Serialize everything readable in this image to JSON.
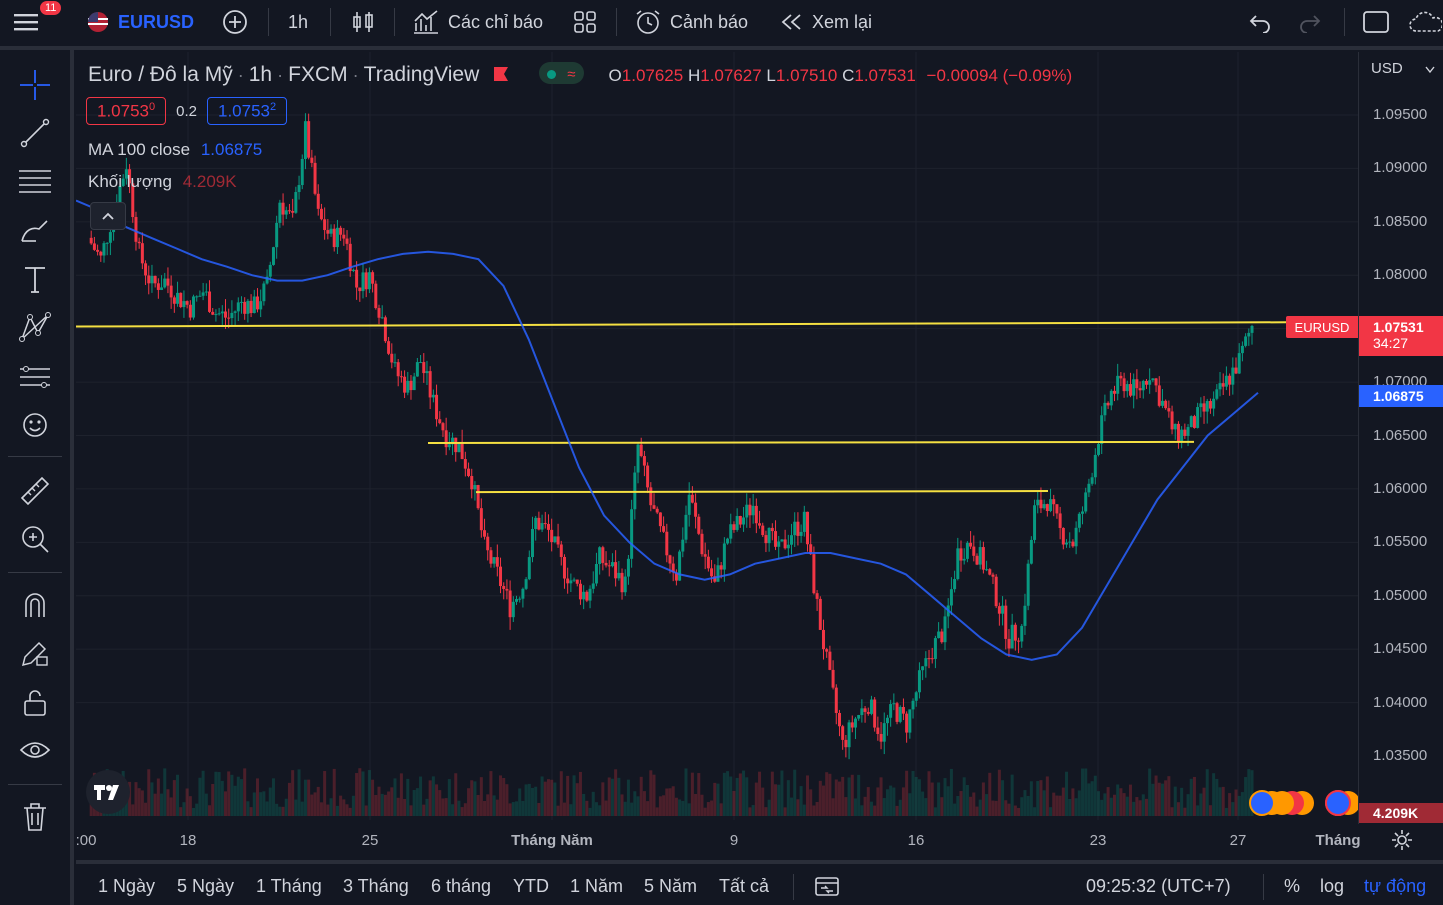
{
  "topbar": {
    "menu_badge": "11",
    "symbol": "EURUSD",
    "interval": "1h",
    "indicators_label": "Các chỉ báo",
    "alert_label": "Cảnh báo",
    "replay_label": "Xem lại"
  },
  "legend": {
    "title": "Euro / Đô la Mỹ",
    "interval": "1h",
    "exchange": "FXCM",
    "source": "TradingView",
    "open_key": "O",
    "open": "1.07625",
    "high_key": "H",
    "high": "1.07627",
    "low_key": "L",
    "low": "1.07510",
    "close_key": "C",
    "close": "1.07531",
    "change": "−0.00094 (−0.09%)",
    "bid": "1.0753",
    "bid_sup": "0",
    "spread": "0.2",
    "ask": "1.0753",
    "ask_sup": "2",
    "ma_label": "MA",
    "ma_params": "100 close",
    "ma_value": "1.06875",
    "volume_label": "Khối lượng",
    "volume_value": "4.209K"
  },
  "price_axis": {
    "currency": "USD",
    "ticks": [
      "1.09500",
      "1.09000",
      "1.08500",
      "1.08000",
      "1.07000",
      "1.06500",
      "1.06000",
      "1.05500",
      "1.05000",
      "1.04500",
      "1.04000",
      "1.03500"
    ],
    "symbol_tag": "EURUSD",
    "last_price": "1.07531",
    "countdown": "34:27",
    "ma_tag": "1.06875",
    "volume_tag": "4.209K"
  },
  "time_axis": {
    "ticks": [
      ":00",
      "18",
      "25",
      "Tháng Năm",
      "9",
      "16",
      "23",
      "27",
      "Tháng"
    ]
  },
  "bottom": {
    "ranges": [
      "1 Ngày",
      "5 Ngày",
      "1 Tháng",
      "3 Tháng",
      "6 tháng",
      "YTD",
      "1 Năm",
      "5 Năm",
      "Tất cả"
    ],
    "time": "09:25:32 (UTC+7)",
    "percent": "%",
    "log": "log",
    "auto": "tự động"
  },
  "colors": {
    "up": "#089981",
    "down": "#f23645",
    "ma": "#2962ff",
    "hline": "#f5e042",
    "accent": "#2962ff"
  },
  "chart_data": {
    "type": "candlestick",
    "symbol": "EURUSD",
    "interval": "1h",
    "ylim": [
      1.0325,
      1.0985
    ],
    "close_path": [
      1.0835,
      1.0815,
      1.086,
      1.0905,
      1.082,
      1.079,
      1.0795,
      1.078,
      1.077,
      1.0785,
      1.0765,
      1.076,
      1.0775,
      1.077,
      1.079,
      1.087,
      1.085,
      1.0935,
      1.0855,
      1.0835,
      1.084,
      1.079,
      1.08,
      1.076,
      1.071,
      1.0695,
      1.072,
      1.068,
      1.065,
      1.064,
      1.061,
      1.0545,
      1.052,
      1.049,
      1.051,
      1.057,
      1.056,
      1.053,
      1.051,
      1.05,
      1.0535,
      1.0525,
      1.051,
      1.064,
      1.0585,
      1.055,
      1.052,
      1.0595,
      1.0545,
      1.051,
      1.0555,
      1.057,
      1.0585,
      1.056,
      1.054,
      1.056,
      1.057,
      1.049,
      1.042,
      1.036,
      1.0385,
      1.04,
      1.037,
      1.0395,
      1.038,
      1.042,
      1.045,
      1.047,
      1.054,
      1.055,
      1.053,
      1.05,
      1.046,
      1.047,
      1.058,
      1.059,
      1.056,
      1.055,
      1.059,
      1.065,
      1.069,
      1.07,
      1.069,
      1.071,
      1.068,
      1.065,
      1.0655,
      1.067,
      1.068,
      1.07,
      1.072,
      1.0753
    ],
    "ma100_path": [
      1.087,
      1.086,
      1.0845,
      1.0835,
      1.0825,
      1.0815,
      1.0808,
      1.08,
      1.0795,
      1.0795,
      1.08,
      1.0808,
      1.0815,
      1.082,
      1.0822,
      1.082,
      1.0815,
      1.079,
      1.074,
      1.068,
      1.062,
      1.0575,
      1.055,
      1.053,
      1.052,
      1.0515,
      1.052,
      1.053,
      1.0535,
      1.054,
      1.054,
      1.0535,
      1.053,
      1.052,
      1.05,
      1.048,
      1.046,
      1.0445,
      1.044,
      1.0445,
      1.047,
      1.051,
      1.055,
      1.059,
      1.062,
      1.065,
      1.067,
      1.069
    ],
    "horizontal_lines": [
      1.0755,
      1.0643,
      1.0597
    ],
    "last_close": 1.07531,
    "ma100_last": 1.06875,
    "last_volume": "4.209K"
  }
}
